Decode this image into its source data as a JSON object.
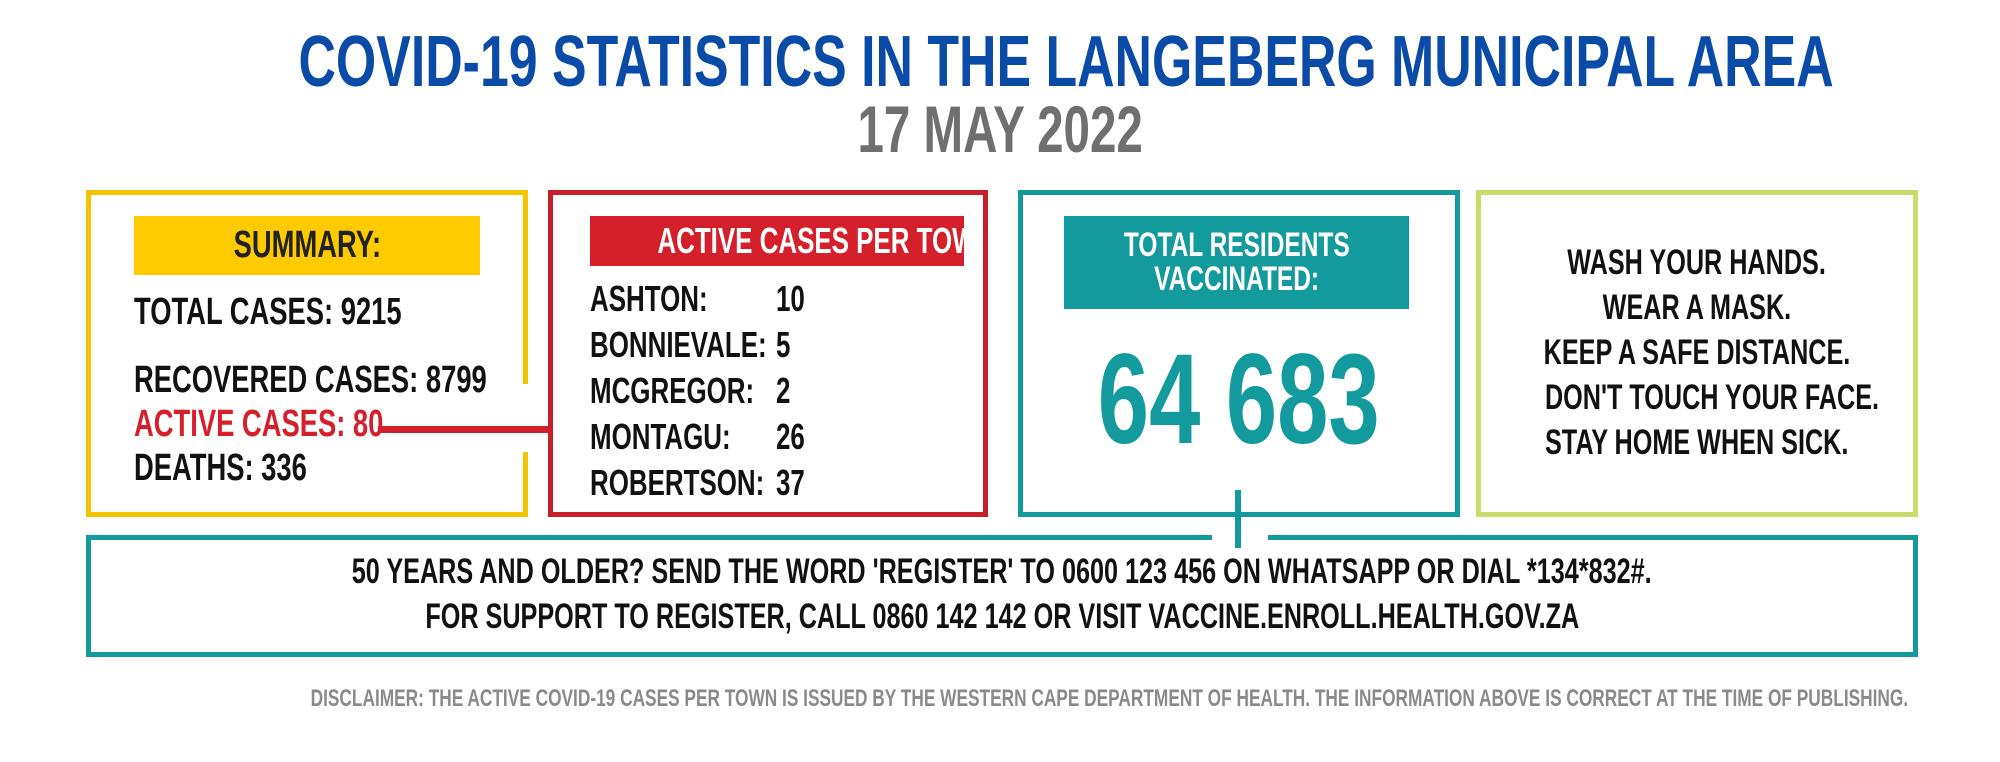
{
  "title": "COVID-19 STATISTICS IN THE LANGEBERG MUNICIPAL AREA",
  "date": "17 MAY 2022",
  "colors": {
    "title_blue": "#0a4ba7",
    "summary_yellow": "#fdcb00",
    "active_red": "#d5202b",
    "vaccine_teal": "#139a9c",
    "tips_green": "#c9dd6c",
    "date_gray": "#6f6f6f"
  },
  "summary": {
    "header": "SUMMARY:",
    "total": "TOTAL CASES: 9215",
    "recovered": "RECOVERED CASES: 8799",
    "active": "ACTIVE CASES: 80",
    "deaths": "DEATHS: 336"
  },
  "active_per_town": {
    "header": "ACTIVE CASES PER TOWN:",
    "rows": [
      {
        "town": "ASHTON:",
        "value": "10"
      },
      {
        "town": "BONNIEVALE:",
        "value": "5"
      },
      {
        "town": "MCGREGOR:",
        "value": "2"
      },
      {
        "town": "MONTAGU:",
        "value": "26"
      },
      {
        "town": "ROBERTSON:",
        "value": "37"
      }
    ]
  },
  "vaccinated": {
    "header_line1": "TOTAL RESIDENTS",
    "header_line2": "VACCINATED:",
    "value": "64 683"
  },
  "tips": [
    "WASH YOUR HANDS.",
    "WEAR A MASK.",
    "KEEP A SAFE DISTANCE.",
    "DON'T TOUCH YOUR FACE.",
    "STAY HOME WHEN SICK."
  ],
  "registration": {
    "line1": "50 YEARS AND OLDER? SEND THE WORD 'REGISTER' TO 0600 123 456 ON WHATSAPP OR DIAL *134*832#.",
    "line2": "FOR SUPPORT TO REGISTER, CALL 0860 142 142 OR VISIT VACCINE.ENROLL.HEALTH.GOV.ZA"
  },
  "disclaimer": "DISCLAIMER: THE ACTIVE COVID-19 CASES PER TOWN IS ISSUED BY THE WESTERN CAPE DEPARTMENT OF HEALTH. THE INFORMATION ABOVE IS CORRECT AT THE TIME OF PUBLISHING."
}
